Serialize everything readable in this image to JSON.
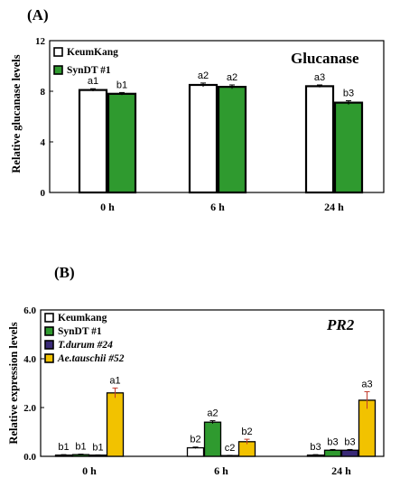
{
  "colors": {
    "white": "#ffffff",
    "green": "#2f9a2f",
    "purple": "#3a2a78",
    "gold": "#f2c200",
    "red_error": "#c0392b"
  },
  "chart_data": [
    {
      "panel": "(A)",
      "type": "bar",
      "title": "Glucanase",
      "ylabel": "Relative glucanase levels",
      "xlabel": "",
      "ylim": [
        0,
        12
      ],
      "yticks": [
        "0",
        "4",
        "8",
        "12"
      ],
      "categories": [
        "0 h",
        "6 h",
        "24 h"
      ],
      "series": [
        {
          "name": "KeumKang",
          "color": "#ffffff",
          "values": [
            8.1,
            8.5,
            8.4
          ],
          "errors": [
            0.1,
            0.15,
            0.1
          ],
          "labels": [
            "a1",
            "a2",
            "a3"
          ]
        },
        {
          "name": "SynDT #1",
          "color": "#2f9a2f",
          "values": [
            7.8,
            8.35,
            7.1
          ],
          "errors": [
            0.1,
            0.15,
            0.15
          ],
          "labels": [
            "b1",
            "a2",
            "b3"
          ]
        }
      ],
      "legend_position": "top-left",
      "grid": false
    },
    {
      "panel": "(B)",
      "type": "bar",
      "title": "PR2",
      "ylabel": "Relative expression levels",
      "xlabel": "",
      "ylim": [
        0,
        6
      ],
      "yticks": [
        "0.0",
        "2.0",
        "4.0",
        "6.0"
      ],
      "categories": [
        "0  h",
        "6 h",
        "24 h"
      ],
      "series": [
        {
          "name": "Keumkang",
          "color": "#ffffff",
          "values": [
            0.05,
            0.35,
            0.05
          ],
          "errors": [
            0.02,
            0.03,
            0.02
          ],
          "labels": [
            "b1",
            "b2",
            "b3"
          ]
        },
        {
          "name": "SynDT #1",
          "color": "#2f9a2f",
          "values": [
            0.07,
            1.4,
            0.25
          ],
          "errors": [
            0.02,
            0.06,
            0.03
          ],
          "labels": [
            "b1",
            "a2",
            "b3"
          ]
        },
        {
          "name": "T.durum #24",
          "color": "#3a2a78",
          "values": [
            0.05,
            0.03,
            0.25
          ],
          "errors": [
            0.01,
            0.01,
            0.03
          ],
          "labels": [
            "b1",
            "c2",
            "b3"
          ]
        },
        {
          "name": "Ae.tauschii #52",
          "color": "#f2c200",
          "values": [
            2.6,
            0.6,
            2.3
          ],
          "errors": [
            0.2,
            0.1,
            0.35
          ],
          "labels": [
            "a1",
            "b2",
            "a3"
          ]
        }
      ],
      "legend_position": "top-left",
      "grid": false
    }
  ]
}
